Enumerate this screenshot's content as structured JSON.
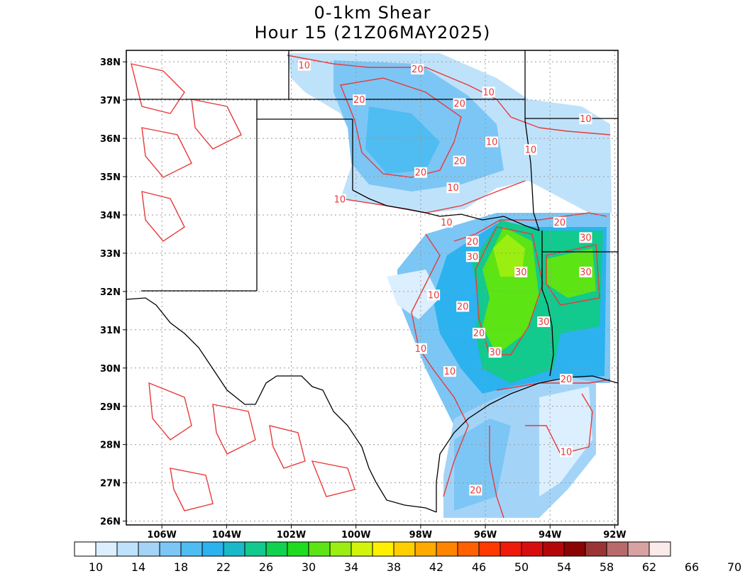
{
  "title_line1": "0-1km Shear",
  "title_line2": "Hour 15 (21Z06MAY2025)",
  "map": {
    "lat_labels": [
      "38N",
      "37N",
      "36N",
      "35N",
      "34N",
      "33N",
      "32N",
      "31N",
      "30N",
      "29N",
      "28N",
      "27N",
      "26N"
    ],
    "lon_labels": [
      "106W",
      "104W",
      "102W",
      "100W",
      "98W",
      "96W",
      "94W",
      "92W"
    ],
    "contour_color": "#e83a3a",
    "contour_labels": [
      {
        "text": "10",
        "lon": -101.6,
        "lat": 37.9
      },
      {
        "text": "20",
        "lon": -98.1,
        "lat": 37.8
      },
      {
        "text": "20",
        "lon": -99.9,
        "lat": 37.0
      },
      {
        "text": "10",
        "lon": -95.9,
        "lat": 37.2
      },
      {
        "text": "20",
        "lon": -96.8,
        "lat": 36.9
      },
      {
        "text": "10",
        "lon": -92.9,
        "lat": 36.5
      },
      {
        "text": "10",
        "lon": -95.8,
        "lat": 35.9
      },
      {
        "text": "10",
        "lon": -94.6,
        "lat": 35.7
      },
      {
        "text": "20",
        "lon": -96.8,
        "lat": 35.4
      },
      {
        "text": "20",
        "lon": -98.0,
        "lat": 35.1
      },
      {
        "text": "10",
        "lon": -97.0,
        "lat": 34.7
      },
      {
        "text": "10",
        "lon": -100.5,
        "lat": 34.4
      },
      {
        "text": "10",
        "lon": -97.2,
        "lat": 33.8
      },
      {
        "text": "20",
        "lon": -93.7,
        "lat": 33.8
      },
      {
        "text": "30",
        "lon": -92.9,
        "lat": 33.4
      },
      {
        "text": "20",
        "lon": -96.4,
        "lat": 33.3
      },
      {
        "text": "30",
        "lon": -96.4,
        "lat": 32.9
      },
      {
        "text": "30",
        "lon": -94.9,
        "lat": 32.5
      },
      {
        "text": "30",
        "lon": -92.9,
        "lat": 32.5
      },
      {
        "text": "10",
        "lon": -97.6,
        "lat": 31.9
      },
      {
        "text": "20",
        "lon": -96.7,
        "lat": 31.6
      },
      {
        "text": "30",
        "lon": -94.2,
        "lat": 31.2
      },
      {
        "text": "20",
        "lon": -96.2,
        "lat": 30.9
      },
      {
        "text": "10",
        "lon": -98.0,
        "lat": 30.5
      },
      {
        "text": "30",
        "lon": -95.7,
        "lat": 30.4
      },
      {
        "text": "10",
        "lon": -97.1,
        "lat": 29.9
      },
      {
        "text": "20",
        "lon": -93.5,
        "lat": 29.7
      },
      {
        "text": "10",
        "lon": -93.5,
        "lat": 27.8
      },
      {
        "text": "20",
        "lon": -96.3,
        "lat": 26.8
      }
    ]
  },
  "colorbar": {
    "colors": [
      "#ffffff",
      "#dcefff",
      "#bfe2fb",
      "#a3d4f7",
      "#7cc6f5",
      "#4fbcf2",
      "#2bb2ef",
      "#1ab8c8",
      "#12c98e",
      "#10d24e",
      "#20dc20",
      "#5ce414",
      "#9aee10",
      "#d2f40a",
      "#fff000",
      "#ffcf00",
      "#ffaa00",
      "#ff8500",
      "#ff6000",
      "#ff3a00",
      "#ef1a0a",
      "#d80e0e",
      "#b40808",
      "#8a0404",
      "#9b3434",
      "#b86a6a",
      "#d8a2a2",
      "#fbeaea"
    ],
    "labels": [
      "10",
      "14",
      "18",
      "22",
      "26",
      "30",
      "34",
      "38",
      "42",
      "46",
      "50",
      "54",
      "58",
      "62",
      "66",
      "70"
    ]
  }
}
